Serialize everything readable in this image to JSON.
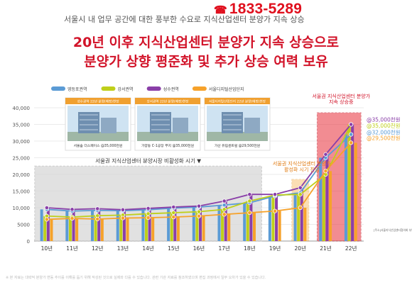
{
  "header": {
    "phone": "1833-5289",
    "subtitle": "서울시 내 업무 공간에 대한 풍부한 수요로 지식산업센터 분양가 지속 상승",
    "title_line1": "20년 이후 지식산업센터 분양가 지속 상승으로",
    "title_line2": "분양가 상향 평준화 및 추가 상승 여력 보유"
  },
  "chart_data": {
    "type": "bar",
    "categories": [
      "10년",
      "11년",
      "12년",
      "13년",
      "14년",
      "15년",
      "16년",
      "17년",
      "18년",
      "19년",
      "20년",
      "21년",
      "22년"
    ],
    "ylim": [
      0,
      40000
    ],
    "yticks": [
      0,
      5000,
      10000,
      15000,
      20000,
      25000,
      30000,
      35000,
      40000
    ],
    "ytick_labels": [
      "0",
      "5000",
      "10,000",
      "15,000",
      "20,000",
      "25,000",
      "30,000",
      "35,000",
      "40,000"
    ],
    "grid": true,
    "legend_position": "top-left",
    "series": [
      {
        "name": "영등포권역",
        "color": "#5b9bd5",
        "values": [
          9500,
          9000,
          9200,
          9100,
          9400,
          9900,
          10200,
          10800,
          11500,
          13500,
          14500,
          25000,
          32000
        ]
      },
      {
        "name": "강서권역",
        "color": "#bfcf1a",
        "values": [
          7500,
          7200,
          7600,
          7800,
          8200,
          8500,
          8800,
          9500,
          12000,
          13800,
          14000,
          20000,
          35000
        ]
      },
      {
        "name": "성수권역",
        "color": "#8a3fa8",
        "values": [
          10000,
          9500,
          9700,
          9400,
          9800,
          10200,
          10500,
          12000,
          14000,
          14000,
          16000,
          26000,
          35000
        ]
      },
      {
        "name": "서울디지털산업단지",
        "color": "#f6a22b",
        "values": [
          6500,
          6800,
          6600,
          6900,
          7000,
          7200,
          7500,
          8000,
          8500,
          9000,
          10000,
          21000,
          29500
        ]
      }
    ],
    "annotations": [
      {
        "text": "서울권 지식산업센터 분양시장 비활성화 시기"
      },
      {
        "text": "서울권 지식산업센터 분양가 활성화 시기 진입"
      },
      {
        "text": "서울권 지식산업센터 분양가 지속 상승중"
      }
    ],
    "value_labels": [
      "@35,000천원",
      "@35,000천원",
      "@32,000천원",
      "@29,500천원"
    ],
    "cards": [
      {
        "title": "성수권역 22년 분양(예정)현장",
        "caption": "서울숲 더스페이스 @35,000천원"
      },
      {
        "title": "강서권역 22년 분양(예정)현장",
        "caption": "가양동 C-1공장 부지 @35,000천원"
      },
      {
        "title": "서울디지털산업단지 22년 분양(예정)현장",
        "caption": "가산 유림센트럴 @29,500천원"
      }
    ],
    "source_note": "[주소]서울지식산업센터협의회 부동산,지식산업센터 공급 현황 조사 분양정보 조사 자료"
  },
  "footnote": "※ 본 자료는 대략적 분양가 변동 추이를 이해를 돕기 위해 작성된 것으로 실제와 다를 수 있습니다. 관련 기관 자료를 참조하였으며 편집 과정에서 일부 오차가 있을 수 있습니다."
}
